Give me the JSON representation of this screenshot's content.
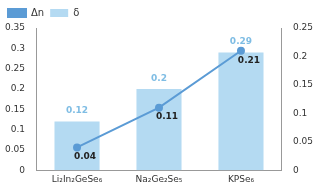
{
  "chart_data": {
    "type": "bar",
    "categories": [
      "Li₂In₂GeSe₆",
      "Na₂Ge₂Se₅",
      "KPSe₆"
    ],
    "series": [
      {
        "name": "δ",
        "type": "bar",
        "color": "#b4daf2",
        "values": [
          0.12,
          0.2,
          0.29
        ]
      },
      {
        "name": "Δn",
        "type": "line",
        "axis": "y2",
        "color": "#5b9bd5",
        "marker": "circle",
        "values": [
          0.04,
          0.11,
          0.21
        ]
      }
    ],
    "ylim": [
      0,
      0.35
    ],
    "yticks": [
      0,
      0.05,
      0.1,
      0.15,
      0.2,
      0.25,
      0.3,
      0.35
    ],
    "y2lim": [
      0,
      0.25
    ],
    "y2ticks": [
      0,
      0.05,
      0.1,
      0.15,
      0.2,
      0.25
    ],
    "data_labels": true,
    "legend": "top-left",
    "grid": false
  }
}
